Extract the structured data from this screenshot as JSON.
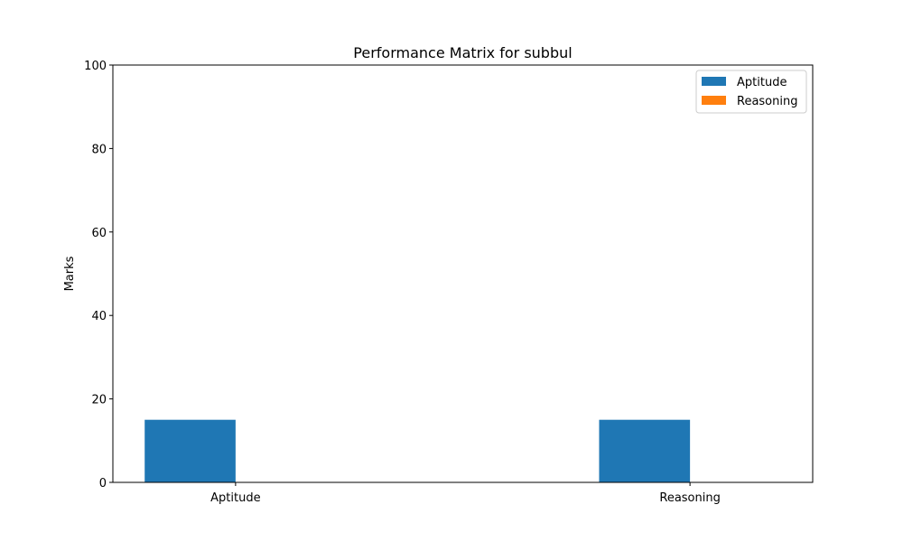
{
  "chart_data": {
    "type": "bar",
    "title": "Performance Matrix for subbul",
    "xlabel": "",
    "ylabel": "Marks",
    "ylim": [
      0,
      100
    ],
    "yticks": [
      0,
      20,
      40,
      60,
      80,
      100
    ],
    "categories": [
      "Aptitude",
      "Reasoning"
    ],
    "series": [
      {
        "name": "Aptitude",
        "color": "#1f77b4",
        "values": [
          15,
          15
        ]
      },
      {
        "name": "Reasoning",
        "color": "#ff7f0e",
        "values": [
          0,
          0
        ]
      }
    ],
    "grid": false,
    "legend_position": "top-right"
  }
}
